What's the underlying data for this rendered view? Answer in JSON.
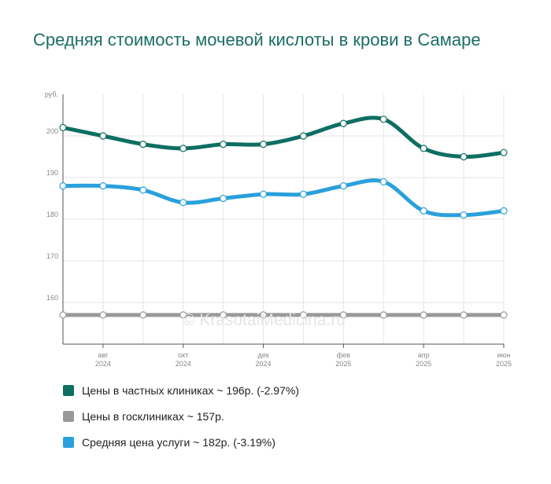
{
  "title": "Средняя стоимость мочевой кислоты в крови в Самаре",
  "watermark": "© KrasotaiMedicina.ru",
  "chart_data": {
    "type": "line",
    "ylabel": "руб.",
    "ylim": [
      150,
      210
    ],
    "yticks": [
      160,
      170,
      180,
      190,
      200
    ],
    "grid": true,
    "x_tick_labels": [
      {
        "index": 1,
        "month": "авг",
        "year": "2024"
      },
      {
        "index": 3,
        "month": "окт",
        "year": "2024"
      },
      {
        "index": 5,
        "month": "дек",
        "year": "2024"
      },
      {
        "index": 7,
        "month": "фев",
        "year": "2025"
      },
      {
        "index": 9,
        "month": "апр",
        "year": "2025"
      },
      {
        "index": 11,
        "month": "июн",
        "year": "2025"
      }
    ],
    "x": [
      "2024-07",
      "2024-08",
      "2024-09",
      "2024-10",
      "2024-11",
      "2024-12",
      "2025-01",
      "2025-02",
      "2025-03",
      "2025-04",
      "2025-05",
      "2025-06"
    ],
    "series": [
      {
        "name": "Цены в частных клиниках ~ 196р. (-2.97%)",
        "color": "#0e6e62",
        "values": [
          202,
          200,
          198,
          197,
          198,
          198,
          200,
          203,
          204,
          197,
          195,
          196
        ]
      },
      {
        "name": "Цены в госклиниках ~ 157р.",
        "color": "#999999",
        "values": [
          157,
          157,
          157,
          157,
          157,
          157,
          157,
          157,
          157,
          157,
          157,
          157
        ]
      },
      {
        "name": "Средняя цена услуги ~ 182р. (-3.19%)",
        "color": "#2aa0dc",
        "values": [
          188,
          188,
          187,
          184,
          185,
          186,
          186,
          188,
          189,
          182,
          181,
          182
        ]
      }
    ]
  }
}
